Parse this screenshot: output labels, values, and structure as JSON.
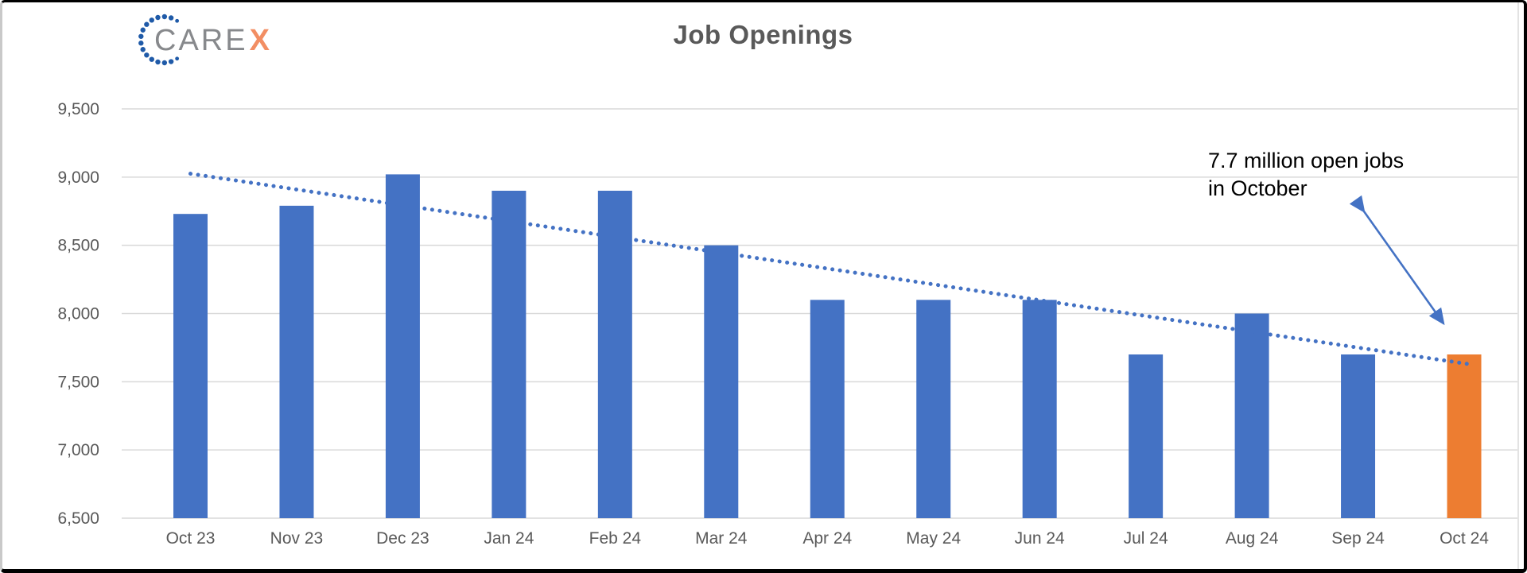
{
  "logo": {
    "care": "CARE",
    "x": "X"
  },
  "chart_data": {
    "type": "bar",
    "title": "Job Openings",
    "categories": [
      "Oct 23",
      "Nov 23",
      "Dec 23",
      "Jan 24",
      "Feb 24",
      "Mar 24",
      "Apr 24",
      "May 24",
      "Jun 24",
      "Jul 24",
      "Aug 24",
      "Sep 24",
      "Oct 24"
    ],
    "values": [
      8730,
      8790,
      9020,
      8900,
      8900,
      8500,
      8100,
      8100,
      8100,
      7700,
      8000,
      7700,
      7700
    ],
    "highlight_index": 12,
    "xlabel": "",
    "ylabel": "",
    "ylim": [
      6500,
      9500
    ],
    "grid": true,
    "legend": "none",
    "y_ticks": [
      {
        "v": 9500,
        "label": "9,500"
      },
      {
        "v": 9000,
        "label": "9,000"
      },
      {
        "v": 8500,
        "label": "8,500"
      },
      {
        "v": 8000,
        "label": "8,000"
      },
      {
        "v": 7500,
        "label": "7,500"
      },
      {
        "v": 7000,
        "label": "7,000"
      },
      {
        "v": 6500,
        "label": "6,500"
      }
    ],
    "trendline": {
      "style": "dotted",
      "start_value": 9025,
      "end_value": 7630
    },
    "annotation": {
      "line1": "7.7 million open jobs",
      "line2": "in October"
    },
    "colors": {
      "bar": "#4472C4",
      "highlight_bar": "#ED7D31",
      "trendline": "#4472C4",
      "arrow": "#4472C4",
      "gridline": "#D9D9D9",
      "axis_text": "#595959",
      "title_text": "#595959",
      "annotation_text": "#000000",
      "logo_dots": "#1F5AA8",
      "logo_care_text": "#87898C",
      "logo_x_text": "#F28E63"
    }
  }
}
